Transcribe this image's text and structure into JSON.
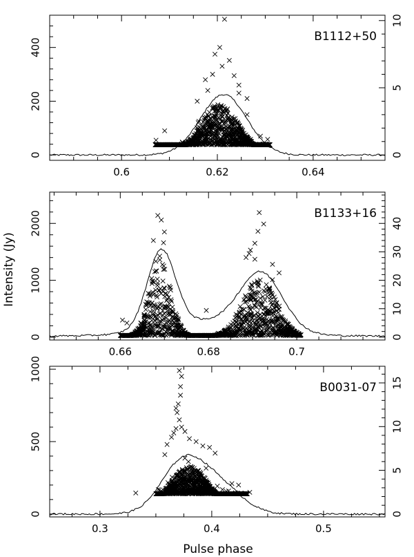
{
  "figure": {
    "ylabel": "Intensity (Jy)",
    "xlabel": "Pulse phase",
    "colors": {
      "axes": "#000000",
      "marks": "#000000"
    }
  },
  "chart_data": [
    {
      "type": "scatter",
      "label": "B1112+50",
      "xlim": [
        0.585,
        0.655
      ],
      "ylim_left": [
        -20,
        520
      ],
      "ylim_right": [
        -0.4,
        10.4
      ],
      "xticks": [
        0.6,
        0.62,
        0.64
      ],
      "yticks_left": [
        0,
        200,
        400
      ],
      "yticks_right": [
        0,
        5,
        10
      ],
      "profile": {
        "peak": 225,
        "bg": 0,
        "components": [
          {
            "center": 0.6213,
            "width": 0.0048,
            "amp": 225
          }
        ]
      },
      "singles": {
        "xrange": [
          0.607,
          0.631
        ],
        "floor": 38,
        "center": 0.6205,
        "width": 0.004,
        "core_max": 190,
        "outliers": [
          [
            0.6215,
            505
          ],
          [
            0.6205,
            400
          ],
          [
            0.6195,
            375
          ],
          [
            0.6225,
            352
          ],
          [
            0.621,
            330
          ],
          [
            0.619,
            300
          ],
          [
            0.6235,
            295
          ],
          [
            0.6175,
            280
          ],
          [
            0.6245,
            260
          ],
          [
            0.609,
            90
          ],
          [
            0.6072,
            55
          ],
          [
            0.629,
            70
          ],
          [
            0.6305,
            58
          ],
          [
            0.6262,
            150
          ],
          [
            0.616,
            120
          ],
          [
            0.6158,
            200
          ],
          [
            0.6262,
            210
          ],
          [
            0.618,
            240
          ],
          [
            0.6245,
            230
          ]
        ]
      }
    },
    {
      "type": "scatter",
      "label": "B1133+16",
      "xlim": [
        0.644,
        0.72
      ],
      "ylim_left": [
        -50,
        2550
      ],
      "ylim_right": [
        -1,
        51
      ],
      "xticks": [
        0.66,
        0.68,
        0.7
      ],
      "yticks_left": [
        0,
        1000,
        2000
      ],
      "yticks_right": [
        0,
        10,
        20,
        30,
        40
      ],
      "profile": {
        "peak": 1370,
        "bg": 20,
        "components": [
          {
            "center": 0.6693,
            "width": 0.0032,
            "amp": 1370
          },
          {
            "center": 0.692,
            "width": 0.0048,
            "amp": 980
          },
          {
            "center": 0.6805,
            "width": 0.011,
            "amp": 260
          }
        ]
      },
      "singles": {
        "xrange": [
          0.66,
          0.701
        ],
        "floor": 30,
        "peaks": [
          {
            "center": 0.669,
            "width": 0.0024,
            "core_max": 1450
          },
          {
            "center": 0.6915,
            "width": 0.0038,
            "core_max": 1050
          }
        ],
        "outliers": [
          [
            0.6685,
            2140
          ],
          [
            0.6693,
            2060
          ],
          [
            0.6675,
            1700
          ],
          [
            0.6698,
            1660
          ],
          [
            0.67,
            1850
          ],
          [
            0.6915,
            2190
          ],
          [
            0.6925,
            1990
          ],
          [
            0.6912,
            1860
          ],
          [
            0.6905,
            1650
          ],
          [
            0.6895,
            1530
          ],
          [
            0.6892,
            1470
          ],
          [
            0.6885,
            1400
          ],
          [
            0.6905,
            1370
          ],
          [
            0.696,
            1130
          ],
          [
            0.6945,
            1280
          ],
          [
            0.6945,
            1010
          ],
          [
            0.6795,
            470
          ],
          [
            0.6605,
            300
          ],
          [
            0.6615,
            250
          ]
        ]
      }
    },
    {
      "type": "scatter",
      "label": "B0031-07",
      "xlim": [
        0.255,
        0.555
      ],
      "ylim_left": [
        -20,
        1020
      ],
      "ylim_right": [
        -0.33,
        16.9
      ],
      "xticks": [
        0.3,
        0.4,
        0.5
      ],
      "yticks_left": [
        0,
        500,
        1000
      ],
      "yticks_right": [
        0,
        5,
        10,
        15
      ],
      "profile": {
        "peak": 330,
        "bg": 0,
        "components": [
          {
            "center": 0.373,
            "width": 0.019,
            "amp": 330
          },
          {
            "center": 0.405,
            "width": 0.021,
            "amp": 200
          }
        ]
      },
      "singles": {
        "xrange": [
          0.35,
          0.432
        ],
        "floor": 140,
        "center": 0.38,
        "width": 0.0185,
        "core_max": 330,
        "outliers": [
          [
            0.371,
            990
          ],
          [
            0.373,
            950
          ],
          [
            0.372,
            880
          ],
          [
            0.372,
            820
          ],
          [
            0.37,
            760
          ],
          [
            0.368,
            730
          ],
          [
            0.369,
            700
          ],
          [
            0.371,
            650
          ],
          [
            0.373,
            600
          ],
          [
            0.368,
            590
          ],
          [
            0.376,
            570
          ],
          [
            0.366,
            560
          ],
          [
            0.364,
            530
          ],
          [
            0.38,
            520
          ],
          [
            0.386,
            500
          ],
          [
            0.36,
            480
          ],
          [
            0.392,
            470
          ],
          [
            0.398,
            460
          ],
          [
            0.403,
            420
          ],
          [
            0.358,
            410
          ],
          [
            0.332,
            145
          ],
          [
            0.418,
            210
          ],
          [
            0.424,
            200
          ],
          [
            0.434,
            150
          ]
        ]
      }
    }
  ]
}
